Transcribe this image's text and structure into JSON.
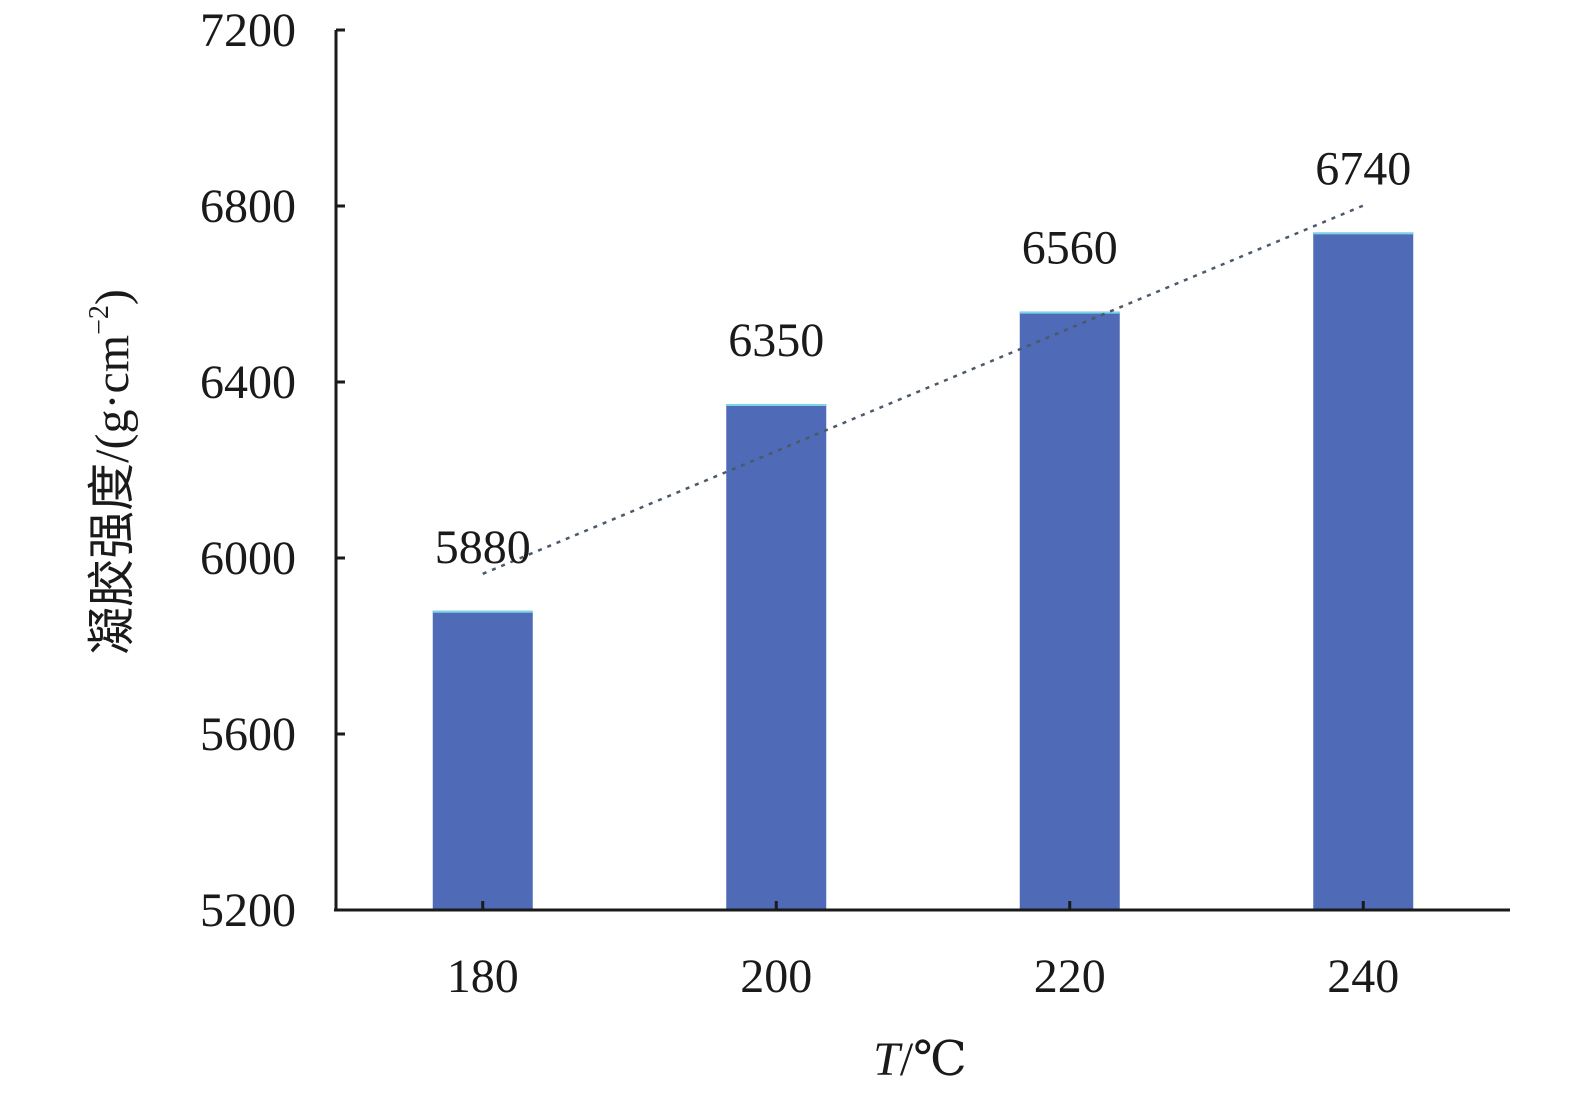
{
  "chart_data": {
    "type": "bar",
    "categories": [
      "180",
      "200",
      "220",
      "240"
    ],
    "values": [
      5880,
      6350,
      6560,
      6740
    ],
    "data_labels": [
      "5880",
      "6350",
      "6560",
      "6740"
    ],
    "title": "",
    "xlabel": "T/℃",
    "xlabel_var": "T",
    "xlabel_unit": "/℃",
    "ylabel": "凝胶强度/(g·cm⁻²)",
    "ylabel_text": "凝胶强度/(g·cm",
    "ylabel_sup": "−2",
    "ylabel_close": ")",
    "ylim": [
      5200,
      7200
    ],
    "yticks": [
      5200,
      5600,
      6000,
      6400,
      6800,
      7200
    ],
    "ytick_labels": [
      "5200",
      "5600",
      "6000",
      "6400",
      "6800",
      "7200"
    ],
    "trendline": {
      "type": "linear",
      "style": "dotted"
    },
    "grid": false,
    "legend": "none",
    "colors": {
      "bar": "#4f6ab6",
      "bar_edge": "#7fd3e6",
      "axis": "#1a1a1a",
      "trend": "#4a5a6a"
    }
  }
}
